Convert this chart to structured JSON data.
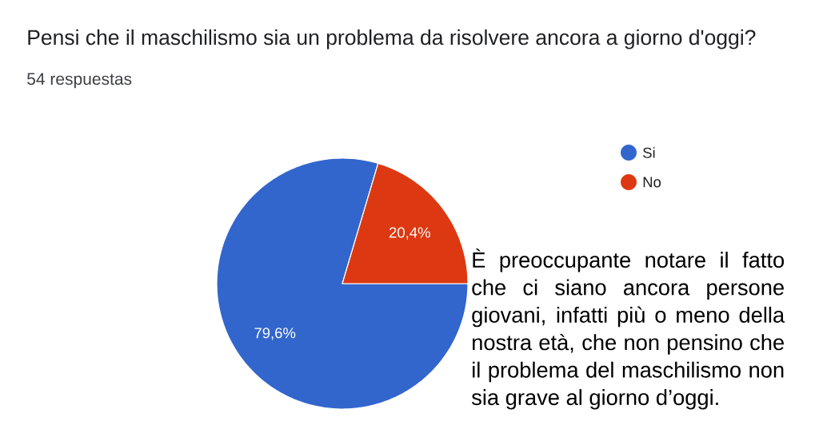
{
  "chart_data": {
    "type": "pie",
    "title": "Pensi che il maschilismo sia un problema da risolvere ancora a giorno d'oggi?",
    "subtitle": "54 respuestas",
    "categories": [
      "Si",
      "No"
    ],
    "values": [
      79.6,
      20.4
    ],
    "colors": [
      "#3366cc",
      "#dc3912"
    ],
    "value_labels": [
      "79,6%",
      "20,4%"
    ],
    "legend": "top right",
    "annotations": [
      "È preoccupante notare il fatto che ci siano ancora persone giovani, infatti più o meno della nostra età, che non pensino che il problema del maschilismo non sia grave al giorno d’oggi."
    ]
  }
}
